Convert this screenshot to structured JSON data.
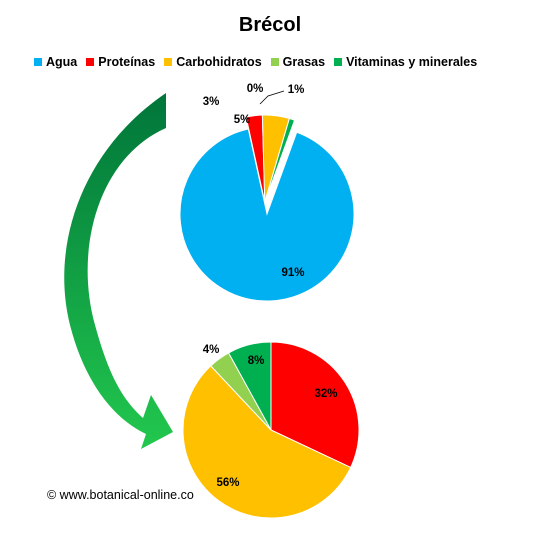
{
  "title": "Brécol",
  "copyright": "© www.botanical-online.co",
  "colors": {
    "agua": "#00b0f0",
    "proteinas": "#ff0000",
    "carbohidratos": "#ffc000",
    "grasas": "#92d050",
    "vitaminas": "#00b050",
    "arrow_dark": "#00753a",
    "arrow_light": "#22c84e"
  },
  "chart_data": [
    {
      "type": "pie",
      "title": "",
      "categories": [
        "Agua",
        "Proteínas",
        "Carbohidratos",
        "Grasas",
        "Vitaminas y minerales"
      ],
      "values": [
        91,
        3,
        5,
        0,
        1
      ],
      "labels": [
        "91%",
        "3%",
        "5%",
        "0%",
        "1%"
      ],
      "exploded": [
        "Proteínas",
        "Carbohidratos",
        "Grasas",
        "Vitaminas y minerales"
      ],
      "legend": "top"
    },
    {
      "type": "pie",
      "title": "",
      "categories": [
        "Proteínas",
        "Carbohidratos",
        "Grasas",
        "Vitaminas y minerales"
      ],
      "values": [
        32,
        56,
        4,
        8
      ],
      "labels": [
        "32%",
        "56%",
        "4%",
        "8%"
      ]
    }
  ]
}
